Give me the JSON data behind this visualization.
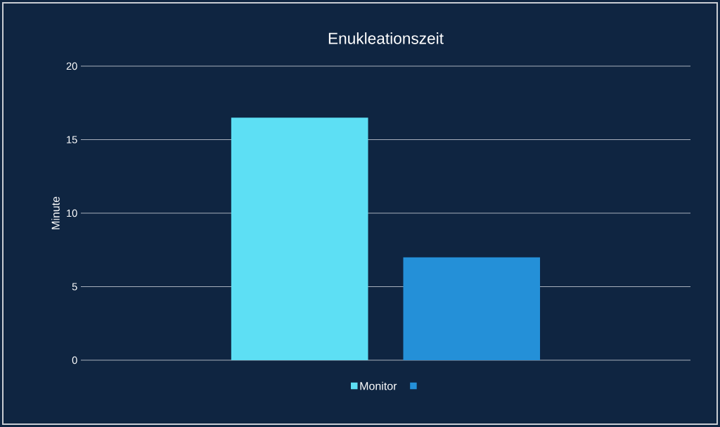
{
  "chart_data": {
    "type": "bar",
    "title": "Enukleationszeit",
    "ylabel": "Minute",
    "categories": [
      null
    ],
    "series": [
      {
        "name": "Monitor",
        "color": "#5ddff4",
        "values": [
          16.5
        ]
      },
      {
        "color": "#2490d8",
        "values": [
          7.0
        ]
      }
    ],
    "ylim": [
      0,
      20
    ],
    "yticks": [
      0,
      5,
      10,
      15,
      20
    ],
    "grid": "y",
    "legend": "bottom",
    "tick_labels": "y"
  }
}
